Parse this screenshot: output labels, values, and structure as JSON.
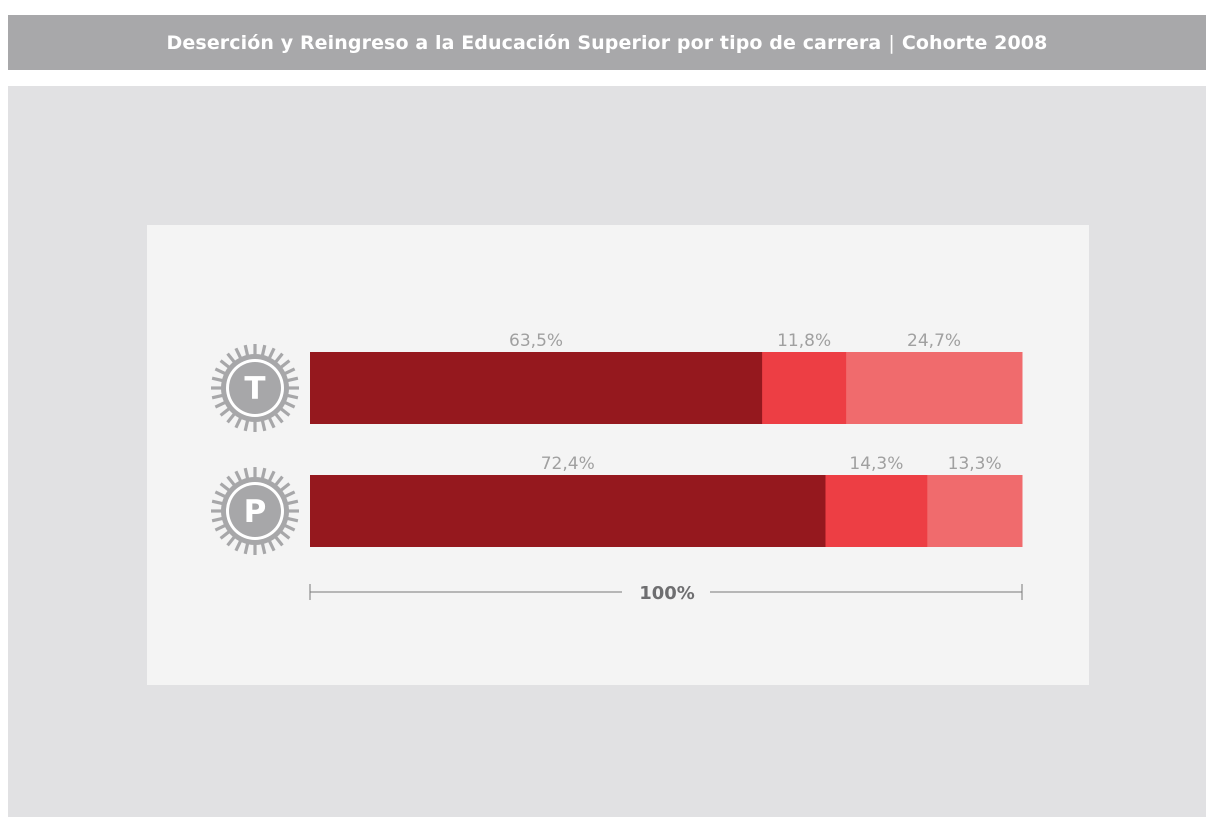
{
  "header": {
    "title": "Deserción y Reingreso a la Educación Superior por tipo de carrera",
    "separator": "|",
    "cohort": "Cohorte 2008"
  },
  "chart_data": {
    "type": "bar",
    "stacked": true,
    "orientation": "horizontal",
    "categories": [
      "T",
      "P"
    ],
    "series": [
      {
        "values": [
          63.5,
          72.4
        ],
        "labels": [
          "63,5%",
          "72,4%"
        ],
        "color": "#95181e"
      },
      {
        "values": [
          11.8,
          14.3
        ],
        "labels": [
          "11,8%",
          "14,3%"
        ],
        "color": "#ed3e44"
      },
      {
        "values": [
          24.7,
          13.3
        ],
        "labels": [
          "24,7%",
          "13,3%"
        ],
        "color": "#f06b6d"
      }
    ],
    "total_label": "100%",
    "xlim": [
      0,
      100
    ],
    "icon": "gear-icon",
    "icon_color": "#a7a7a9",
    "label_color": "#a0a0a0",
    "grid": false,
    "legend": "none"
  }
}
